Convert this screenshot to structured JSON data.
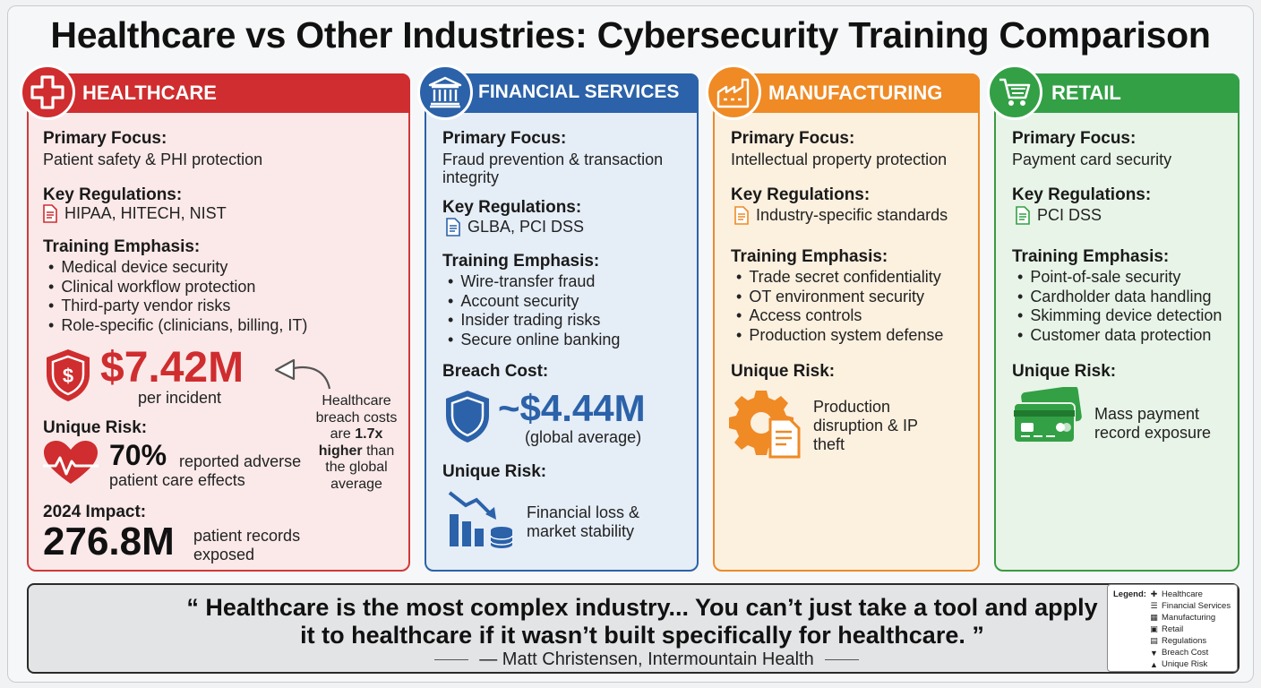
{
  "title": "Healthcare vs Other Industries: Cybersecurity Training Comparison",
  "colors": {
    "healthcare": "#cf2d2f",
    "financial": "#2b62a9",
    "manufacturing": "#ef8a25",
    "retail": "#33a046"
  },
  "healthcare": {
    "name": "HEALTHCARE",
    "icon": "medical-cross-icon",
    "focus_label": "Primary Focus:",
    "focus": "Patient safety & PHI protection",
    "regs_label": "Key Regulations:",
    "regs": "HIPAA, HITECH, NIST",
    "training_label": "Training Emphasis:",
    "training": [
      "Medical device security",
      "Clinical workflow protection",
      "Third-party vendor risks",
      "Role-specific (clinicians, billing, IT)"
    ],
    "cost": "$7.42M",
    "cost_note": "per incident",
    "callout_1": "Healthcare",
    "callout_2": "breach costs",
    "callout_3a": "are ",
    "callout_3b": "1.7x",
    "callout_4a": "higher",
    "callout_4b": " than",
    "callout_5": "the global",
    "callout_6": "average",
    "risk_label": "Unique Risk:",
    "risk_pct": "70%",
    "risk_text_1": "reported adverse",
    "risk_text_2": "patient care effects",
    "impact_label": "2024 Impact:",
    "impact_value": "276.8M",
    "impact_text_1": "patient records",
    "impact_text_2": "exposed"
  },
  "financial": {
    "name": "FINANCIAL SERVICES",
    "icon": "bank-icon",
    "focus_label": "Primary Focus:",
    "focus_1": "Fraud prevention & transaction",
    "focus_2": "integrity",
    "regs_label": "Key Regulations:",
    "regs": "GLBA, PCI DSS",
    "training_label": "Training Emphasis:",
    "training": [
      "Wire-transfer fraud",
      "Account security",
      "Insider trading risks",
      "Secure online banking"
    ],
    "cost_label": "Breach Cost:",
    "cost": "~$4.44M",
    "cost_note": "(global average)",
    "risk_label": "Unique Risk:",
    "risk_1": "Financial loss &",
    "risk_2": "market stability"
  },
  "manufacturing": {
    "name": "MANUFACTURING",
    "icon": "factory-icon",
    "focus_label": "Primary Focus:",
    "focus": "Intellectual property protection",
    "regs_label": "Key Regulations:",
    "regs": "Industry-specific standards",
    "training_label": "Training Emphasis:",
    "training": [
      "Trade secret confidentiality",
      "OT environment security",
      "Access controls",
      "Production system defense"
    ],
    "risk_label": "Unique Risk:",
    "risk_1": "Production",
    "risk_2": "disruption & IP",
    "risk_3": "theft"
  },
  "retail": {
    "name": "RETAIL",
    "icon": "shopping-cart-icon",
    "focus_label": "Primary Focus:",
    "focus": "Payment card security",
    "regs_label": "Key Regulations:",
    "regs": "PCI DSS",
    "training_label": "Training Emphasis:",
    "training": [
      "Point-of-sale security",
      "Cardholder data handling",
      "Skimming device detection",
      "Customer data protection"
    ],
    "risk_label": "Unique Risk:",
    "risk_1": "Mass payment",
    "risk_2": "record exposure"
  },
  "quote": {
    "line_1": "“ Healthcare is the most complex industry... You can’t just take a tool and apply",
    "line_2": "it to healthcare if it wasn’t built specifically for healthcare. ”",
    "attribution": "— Matt Christensen, Intermountain Health"
  },
  "legend": {
    "title": "Legend:",
    "items": [
      "Healthcare",
      "Financial Services",
      "Manufacturing",
      "Retail",
      "Regulations",
      "Breach Cost",
      "Unique Risk"
    ]
  }
}
